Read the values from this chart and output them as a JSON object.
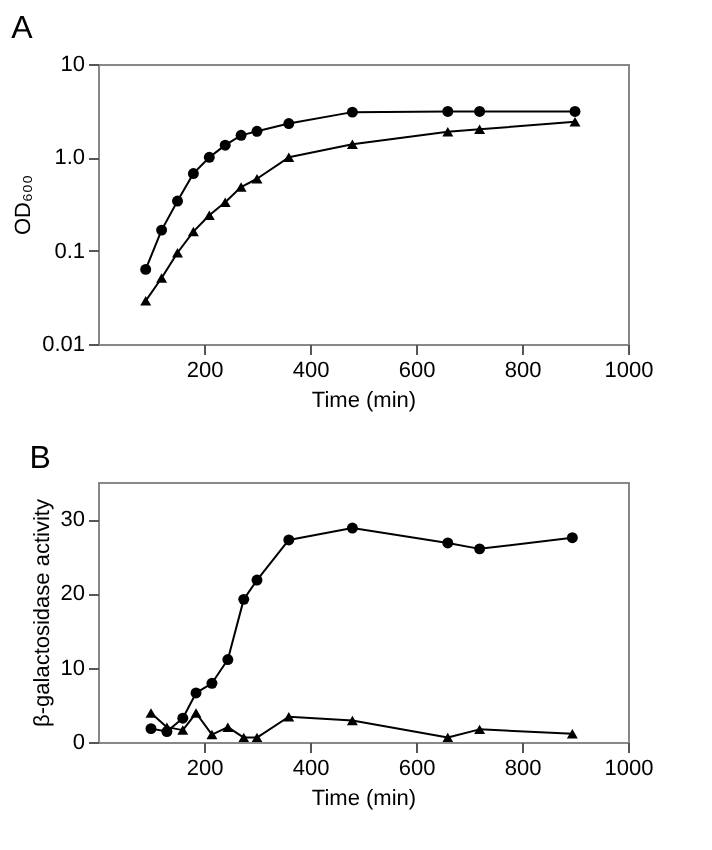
{
  "chart_data": [
    {
      "type": "line",
      "title": "A",
      "xlabel": "Time (min)",
      "ylabel": "OD₆₀₀",
      "log": "y",
      "grid": false,
      "xlim": [
        0,
        1000
      ],
      "xticks": [
        200,
        400,
        600,
        800,
        1000
      ],
      "ylim": [
        0.01,
        10
      ],
      "yticks": [
        0.01,
        0.1,
        {
          "value": 1,
          "label": "1.0"
        },
        10
      ],
      "x": [
        90,
        120,
        150,
        180,
        210,
        240,
        270,
        300,
        360,
        480,
        660,
        720,
        900
      ],
      "series": [
        {
          "color": "#000000",
          "marker": "circle",
          "values": [
            0.063,
            0.166,
            0.34,
            0.67,
            1.0,
            1.35,
            1.72,
            1.9,
            2.3,
            3.05,
            3.1,
            3.1,
            3.1
          ]
        },
        {
          "color": "#000000",
          "marker": "triangle",
          "values": [
            0.029,
            0.051,
            0.095,
            0.16,
            0.24,
            0.33,
            0.48,
            0.59,
            1.0,
            1.38,
            1.88,
            2.0,
            2.4
          ]
        }
      ]
    },
    {
      "type": "line",
      "title": "B",
      "xlabel": "Time (min)",
      "ylabel": "β-galactosidase activity",
      "grid": false,
      "xlim": [
        0,
        1000
      ],
      "xticks": [
        200,
        400,
        600,
        800,
        1000
      ],
      "ylim": [
        0,
        35
      ],
      "yticks": [
        0,
        10,
        20,
        30
      ],
      "x": [
        100,
        130,
        160,
        185,
        215,
        245,
        275,
        300,
        360,
        480,
        660,
        720,
        895
      ],
      "series": [
        {
          "color": "#000000",
          "marker": "circle",
          "values": [
            1.8,
            1.4,
            3.2,
            6.6,
            7.9,
            11.1,
            19.2,
            21.8,
            27.2,
            28.8,
            26.8,
            26.0,
            27.5
          ]
        },
        {
          "color": "#000000",
          "marker": "triangle",
          "values": [
            3.9,
            2.0,
            1.6,
            3.9,
            1.0,
            2.0,
            0.6,
            0.6,
            3.4,
            2.9,
            0.6,
            1.7,
            1.1
          ]
        }
      ]
    }
  ]
}
